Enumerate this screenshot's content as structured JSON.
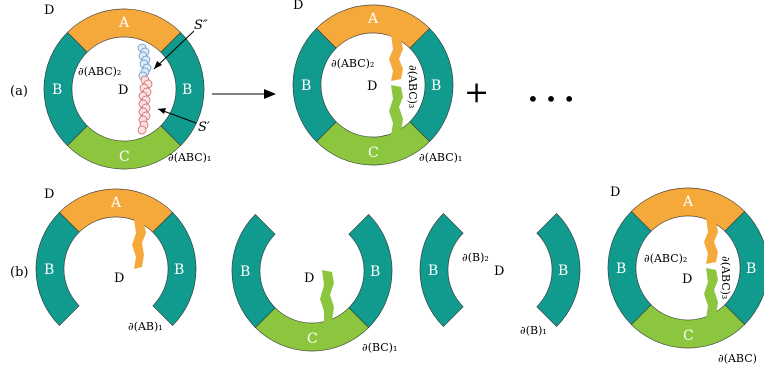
{
  "colors": {
    "A": "#F6A93B",
    "B": "#109B8E",
    "C": "#8CC63F",
    "stroke": "#222222",
    "chainBlue": "#9ECAE8",
    "chainRed": "#F2A3A3"
  },
  "row_labels": {
    "a": "(a)",
    "b": "(b)"
  },
  "segments": {
    "A": "A",
    "B": "B",
    "C": "C",
    "D": "D"
  },
  "boundary": {
    "abc2": "∂(ABC)₂",
    "abc3": "∂(ABC)₃",
    "abc1": "∂(ABC)₁",
    "ab1": "∂(AB)₁",
    "bc1": "∂(BC)₁",
    "b2": "∂(B)₂",
    "b1": "∂(B)₁",
    "abc": "∂(ABC)"
  },
  "surfaces": {
    "s_double": "S″",
    "s_single": "S′"
  },
  "operators": {
    "plus": "+",
    "ellipsis": "• • •"
  }
}
